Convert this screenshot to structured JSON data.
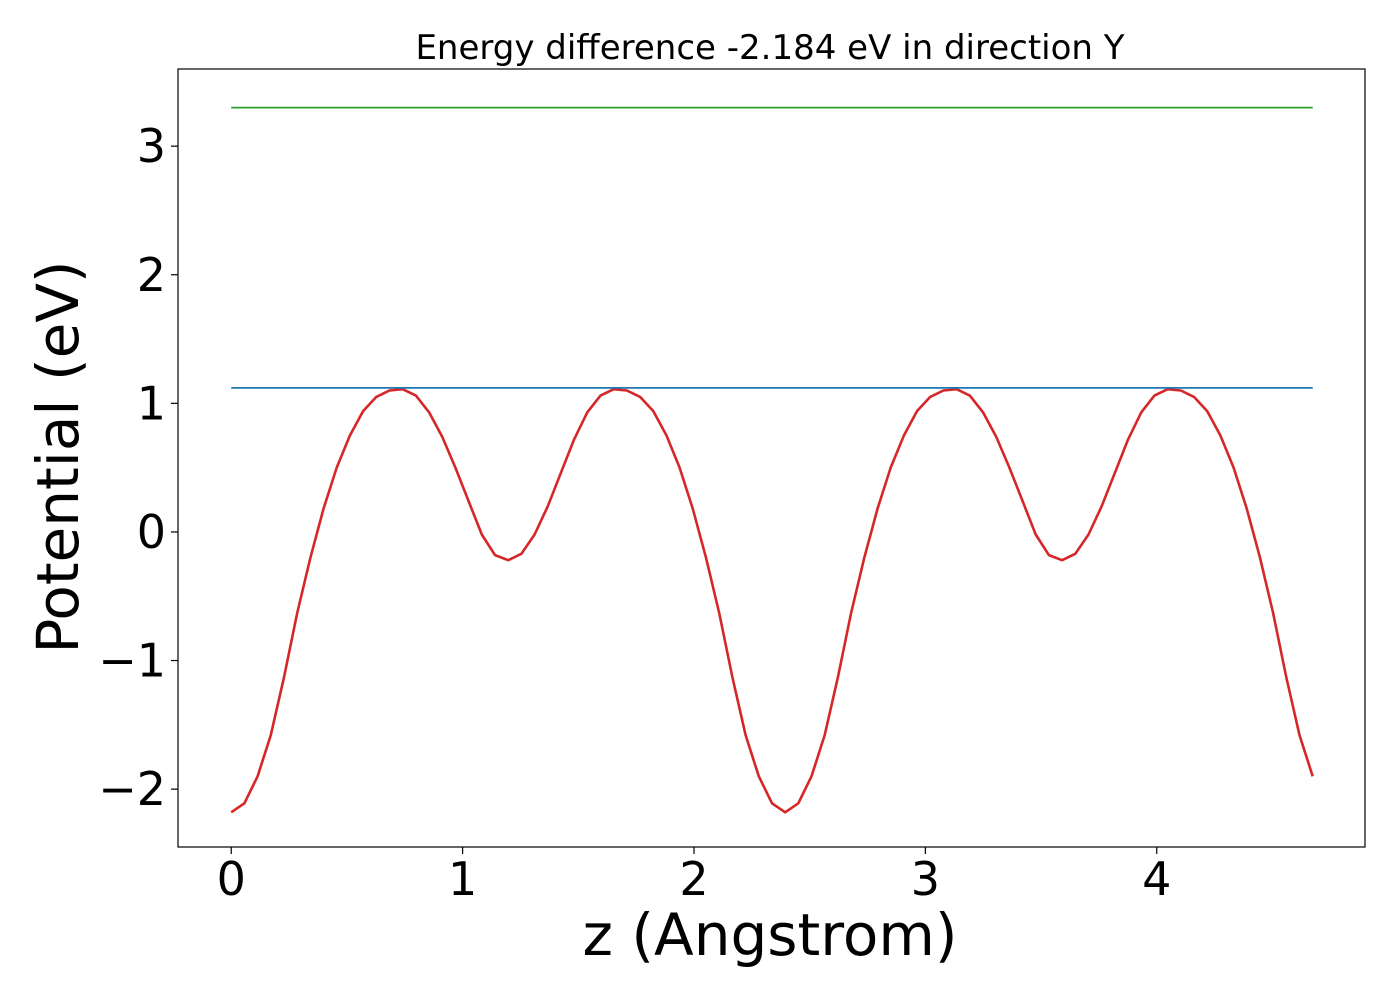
{
  "chart_data": {
    "type": "line",
    "title": "Energy difference -2.184 eV in direction Y",
    "xlabel": "z (Angstrom)",
    "ylabel": "Potential (eV)",
    "xlim": [
      -0.23,
      4.9
    ],
    "ylim": [
      -2.45,
      3.6
    ],
    "xticks": [
      0,
      1,
      2,
      3,
      4
    ],
    "xtick_labels": [
      "0",
      "1",
      "2",
      "3",
      "4"
    ],
    "yticks": [
      -2,
      -1,
      0,
      1,
      2,
      3
    ],
    "ytick_labels": [
      "−2",
      "−1",
      "0",
      "1",
      "2",
      "3"
    ],
    "grid": false,
    "legend": false,
    "series": [
      {
        "color": "#d62728",
        "x": [
          0,
          0.057,
          0.114,
          0.171,
          0.228,
          0.285,
          0.342,
          0.399,
          0.456,
          0.513,
          0.57,
          0.627,
          0.684,
          0.741,
          0.798,
          0.855,
          0.912,
          0.969,
          1.026,
          1.083,
          1.14,
          1.197,
          1.254,
          1.311,
          1.368,
          1.425,
          1.482,
          1.539,
          1.596,
          1.653,
          1.71,
          1.767,
          1.824,
          1.881,
          1.938,
          1.995,
          2.052,
          2.109,
          2.166,
          2.223,
          2.28,
          2.337,
          2.394,
          2.451,
          2.508,
          2.565,
          2.622,
          2.679,
          2.736,
          2.793,
          2.85,
          2.907,
          2.964,
          3.021,
          3.078,
          3.135,
          3.192,
          3.249,
          3.306,
          3.363,
          3.42,
          3.477,
          3.534,
          3.591,
          3.648,
          3.705,
          3.762,
          3.819,
          3.876,
          3.933,
          3.99,
          4.047,
          4.104,
          4.161,
          4.218,
          4.275,
          4.332,
          4.389,
          4.446,
          4.503,
          4.56,
          4.617,
          4.674
        ],
        "values": [
          -2.18,
          -2.11,
          -1.9,
          -1.58,
          -1.13,
          -0.63,
          -0.2,
          0.18,
          0.5,
          0.75,
          0.94,
          1.05,
          1.1,
          1.11,
          1.06,
          0.93,
          0.74,
          0.5,
          0.24,
          -0.02,
          -0.18,
          -0.22,
          -0.17,
          -0.02,
          0.2,
          0.46,
          0.72,
          0.93,
          1.06,
          1.11,
          1.1,
          1.05,
          0.94,
          0.75,
          0.5,
          0.18,
          -0.2,
          -0.63,
          -1.13,
          -1.58,
          -1.9,
          -2.11,
          -2.18,
          -2.11,
          -1.9,
          -1.58,
          -1.13,
          -0.63,
          -0.2,
          0.18,
          0.5,
          0.75,
          0.94,
          1.05,
          1.1,
          1.11,
          1.06,
          0.93,
          0.74,
          0.5,
          0.24,
          -0.02,
          -0.18,
          -0.22,
          -0.17,
          -0.02,
          0.2,
          0.46,
          0.72,
          0.93,
          1.06,
          1.11,
          1.1,
          1.05,
          0.94,
          0.75,
          0.5,
          0.18,
          -0.2,
          -0.63,
          -1.13,
          -1.58,
          -1.9
        ]
      },
      {
        "color": "#1f77b4",
        "x": [
          0,
          4.674
        ],
        "values": [
          1.12,
          1.12
        ]
      },
      {
        "color": "#2ca02c",
        "x": [
          0,
          4.674
        ],
        "values": [
          3.3,
          3.3
        ]
      }
    ]
  }
}
